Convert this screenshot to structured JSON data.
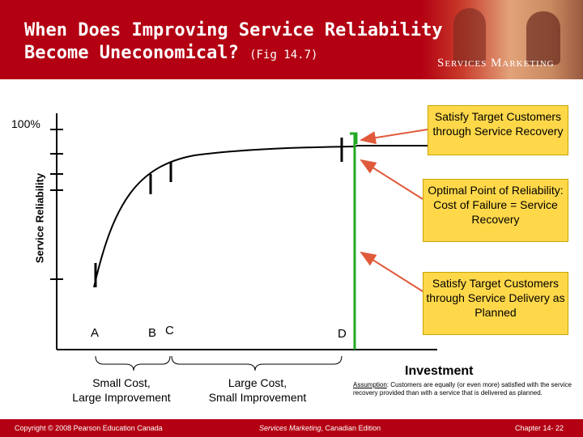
{
  "header": {
    "title_line1": "When Does Improving Service Reliability",
    "title_line2": "Become Uneconomical?",
    "title_fig": "(Fig 14.7)",
    "brand": "Services Marketing"
  },
  "diagram": {
    "y_axis_label": "Service Reliability",
    "y_tick_label": "100%",
    "x_axis_label": "Investment",
    "points": [
      "A",
      "B",
      "C",
      "D"
    ],
    "small_cost": "Small Cost,",
    "large_improvement": "Large Improvement",
    "large_cost": "Large Cost,",
    "small_improvement": "Small Improvement",
    "assumption_label": "Assumption",
    "assumption_text": ": Customers are equally (or even more) satisfied with the service recovery provided than with a service that is delivered as planned.",
    "callouts": {
      "recovery": "Satisfy Target Customers through Service Recovery",
      "optimal": "Optimal Point of Reliability: Cost of Failure = Service Recovery",
      "planned": "Satisfy Target Customers through Service Delivery as Planned"
    },
    "colors": {
      "axis": "#000000",
      "arrow": "#e05a3a",
      "green_line": "#22aa22",
      "callout_fill": "#ffd84a",
      "brand_red": "#b30012"
    }
  },
  "footer": {
    "copyright": "Copyright © 2008 Pearson Education Canada",
    "edition_italic": "Services Marketing",
    "edition_rest": ", Canadian Edition",
    "chapter": "Chapter 14- 22"
  }
}
